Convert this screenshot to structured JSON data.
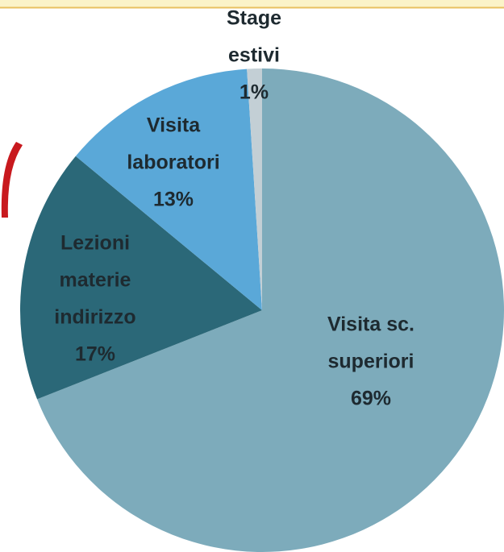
{
  "chart_data": {
    "type": "pie",
    "categories": [
      [
        "Visita sc.",
        "superiori"
      ],
      [
        "Lezioni",
        "materie",
        "indirizzo"
      ],
      [
        "Visita",
        "laboratori"
      ],
      [
        "Stage",
        "estivi"
      ]
    ],
    "values": [
      69,
      17,
      13,
      1
    ],
    "value_labels": [
      "69%",
      "17%",
      "13%",
      "1%"
    ],
    "colors": [
      "#7dabbb",
      "#2b6878",
      "#5aa8d8",
      "#c3cfd5"
    ]
  }
}
